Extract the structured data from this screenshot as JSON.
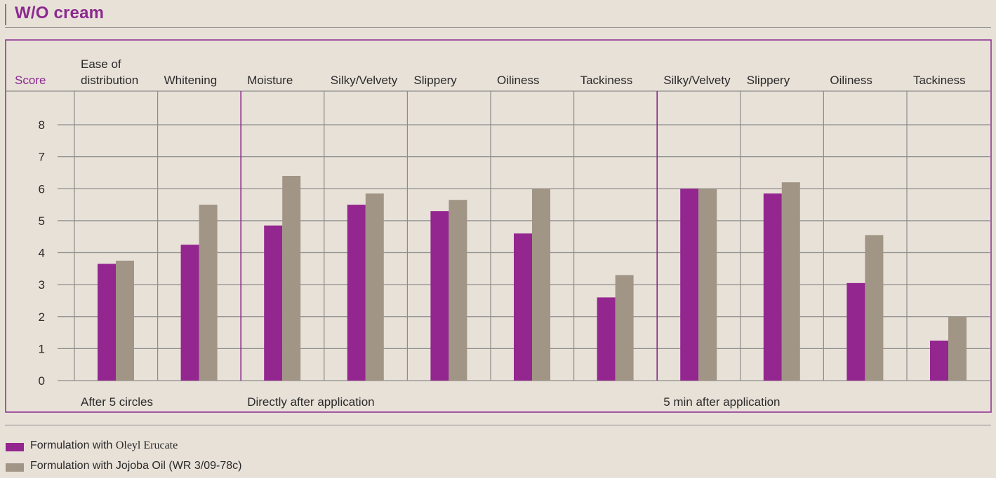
{
  "title": "W/O cream",
  "colors": {
    "oleyl": "#93268f",
    "jojoba": "#a19585",
    "frame": "#8b2a8f",
    "grid": "#8c8c8c",
    "group_divider": "#8b2a8f",
    "score_label": "#8b2a8f"
  },
  "chart_data": {
    "type": "bar",
    "ylabel": "Score",
    "ylim": [
      0,
      8
    ],
    "yticks": [
      0,
      1,
      2,
      3,
      4,
      5,
      6,
      7,
      8
    ],
    "grid": true,
    "legend_position": "bottom-left",
    "categories": [
      {
        "label": [
          "Ease of",
          "distribution"
        ],
        "group": "After 5 circles"
      },
      {
        "label": [
          "Whitening"
        ],
        "group": "After 5 circles"
      },
      {
        "label": [
          "Moisture"
        ],
        "group": "Directly after application"
      },
      {
        "label": [
          "Silky/Velvety"
        ],
        "group": "Directly after application"
      },
      {
        "label": [
          "Slippery"
        ],
        "group": "Directly after application"
      },
      {
        "label": [
          "Oiliness"
        ],
        "group": "Directly after application"
      },
      {
        "label": [
          "Tackiness"
        ],
        "group": "Directly after application"
      },
      {
        "label": [
          "Silky/Velvety"
        ],
        "group": "5 min after application"
      },
      {
        "label": [
          "Slippery"
        ],
        "group": "5 min after application"
      },
      {
        "label": [
          "Oiliness"
        ],
        "group": "5 min after application"
      },
      {
        "label": [
          "Tackiness"
        ],
        "group": "5 min after application"
      }
    ],
    "groups": [
      {
        "label": "After 5 circles",
        "start": 0
      },
      {
        "label": "Directly after application",
        "start": 2
      },
      {
        "label": "5 min after application",
        "start": 7
      }
    ],
    "series": [
      {
        "name": "Formulation with",
        "name_suffix": "Oleyl Erucate",
        "color_key": "oleyl",
        "values": [
          3.65,
          4.25,
          4.85,
          5.5,
          5.3,
          4.6,
          2.6,
          6.0,
          5.85,
          3.05,
          1.25
        ]
      },
      {
        "name": "Formulation with Jojoba Oil (WR 3/09-78c)",
        "name_suffix": "",
        "color_key": "jojoba",
        "values": [
          3.75,
          5.5,
          6.4,
          5.85,
          5.65,
          6.0,
          3.3,
          6.0,
          6.2,
          4.55,
          2.0
        ]
      }
    ]
  }
}
